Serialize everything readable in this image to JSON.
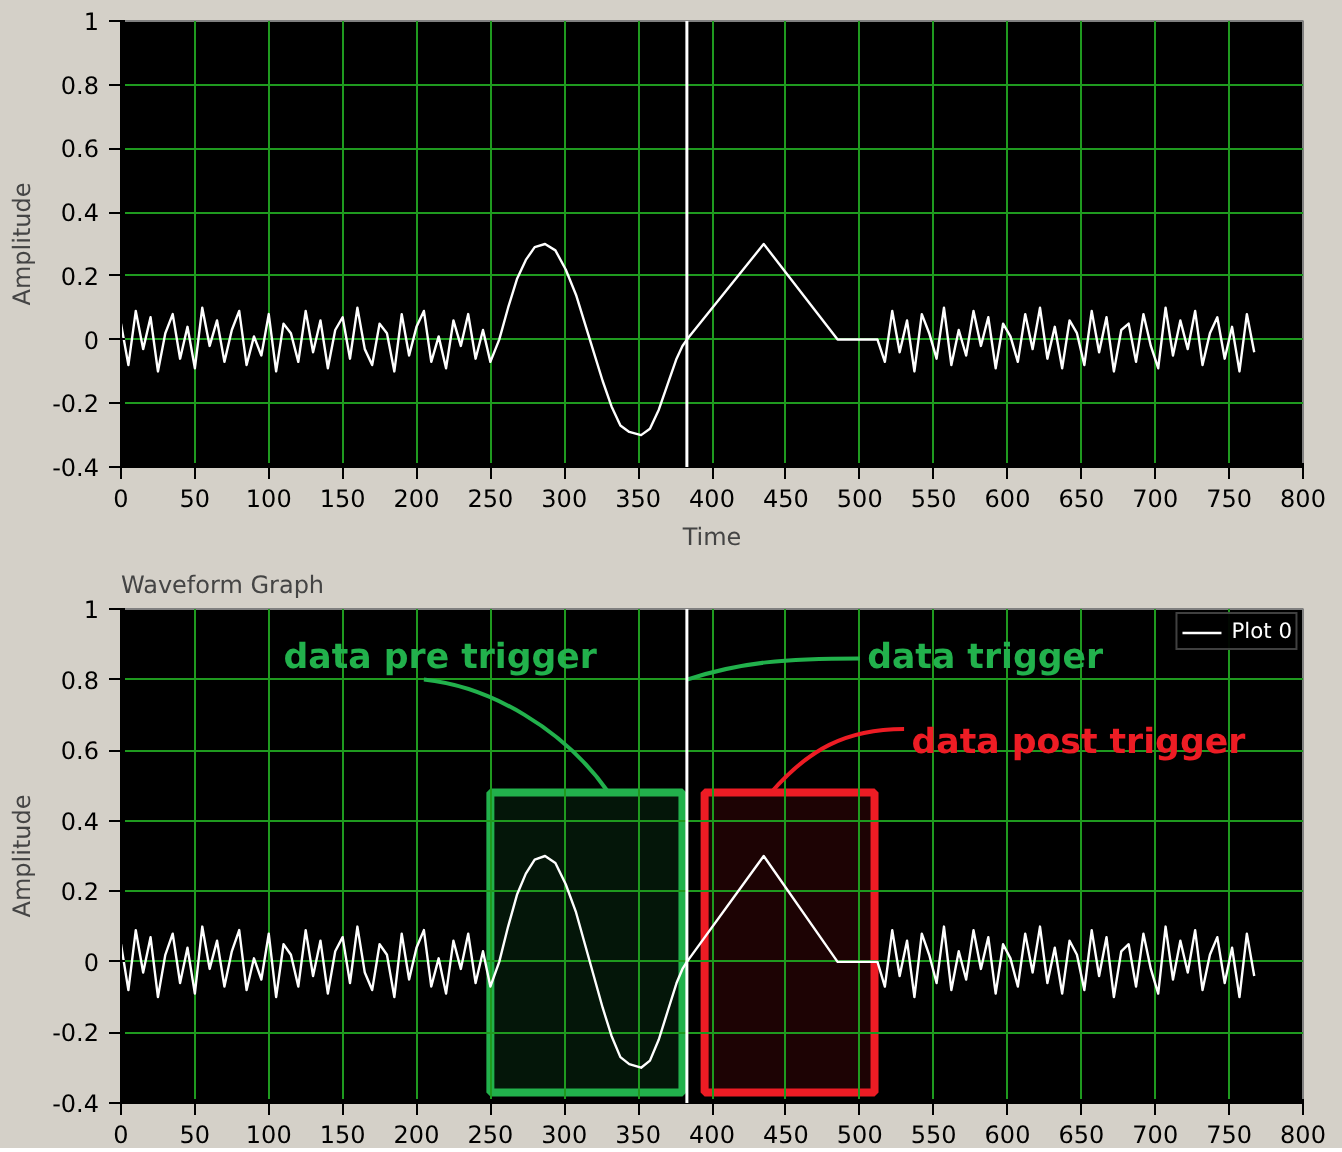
{
  "chart_data": [
    {
      "type": "line",
      "xlabel": "Time",
      "ylabel": "Amplitude",
      "xlim": [
        0,
        800
      ],
      "ylim": [
        -0.4,
        1
      ],
      "xticks": [
        0,
        50,
        100,
        150,
        200,
        250,
        300,
        350,
        400,
        450,
        500,
        550,
        600,
        650,
        700,
        750,
        800
      ],
      "yticks": [
        -0.4,
        -0.2,
        0,
        0.2,
        0.4,
        0.6,
        0.8,
        1
      ],
      "grid": true,
      "legend": false,
      "ref_lines": [
        {
          "axis": "x",
          "value": 383,
          "color": "#ffffff"
        }
      ],
      "series": [
        {
          "color": "#ffffff",
          "x": [
            0,
            5,
            10,
            15,
            20,
            25,
            30,
            35,
            40,
            45,
            50,
            55,
            60,
            65,
            70,
            75,
            80,
            85,
            90,
            95,
            100,
            105,
            110,
            115,
            120,
            125,
            130,
            135,
            140,
            145,
            150,
            155,
            160,
            165,
            170,
            175,
            180,
            185,
            190,
            195,
            200,
            205,
            210,
            215,
            220,
            225,
            230,
            235,
            240,
            245,
            250,
            256,
            262,
            268,
            274,
            280,
            287,
            294,
            301,
            308,
            314,
            320,
            326,
            332,
            338,
            344,
            352,
            358,
            364,
            370,
            376,
            380,
            383,
            435,
            485,
            512,
            517,
            522,
            527,
            532,
            537,
            542,
            547,
            552,
            557,
            562,
            567,
            572,
            577,
            582,
            587,
            592,
            597,
            602,
            607,
            612,
            617,
            622,
            627,
            632,
            637,
            642,
            647,
            652,
            657,
            662,
            667,
            672,
            677,
            682,
            687,
            692,
            697,
            702,
            707,
            712,
            717,
            722,
            727,
            732,
            737,
            742,
            747,
            752,
            757,
            762,
            767
          ],
          "values": [
            0.05,
            -0.08,
            0.09,
            -0.03,
            0.07,
            -0.1,
            0.02,
            0.08,
            -0.06,
            0.04,
            -0.09,
            0.1,
            -0.02,
            0.06,
            -0.07,
            0.03,
            0.09,
            -0.08,
            0.01,
            -0.05,
            0.08,
            -0.1,
            0.05,
            0.02,
            -0.07,
            0.09,
            -0.04,
            0.06,
            -0.09,
            0.03,
            0.07,
            -0.06,
            0.1,
            -0.03,
            -0.08,
            0.05,
            0.02,
            -0.1,
            0.08,
            -0.05,
            0.04,
            0.09,
            -0.07,
            0.01,
            -0.09,
            0.06,
            -0.02,
            0.08,
            -0.06,
            0.03,
            -0.07,
            0,
            0.1,
            0.19,
            0.25,
            0.29,
            0.3,
            0.28,
            0.22,
            0.14,
            0.05,
            -0.04,
            -0.13,
            -0.21,
            -0.27,
            -0.29,
            -0.3,
            -0.28,
            -0.22,
            -0.14,
            -0.06,
            -0.02,
            0,
            0.3,
            0,
            0,
            -0.07,
            0.09,
            -0.04,
            0.06,
            -0.1,
            0.08,
            0.02,
            -0.06,
            0.1,
            -0.08,
            0.03,
            -0.05,
            0.09,
            -0.02,
            0.07,
            -0.09,
            0.05,
            0.01,
            -0.07,
            0.08,
            -0.03,
            0.1,
            -0.06,
            0.04,
            -0.09,
            0.06,
            0.02,
            -0.08,
            0.09,
            -0.04,
            0.07,
            -0.1,
            0.03,
            0.05,
            -0.07,
            0.08,
            -0.02,
            -0.09,
            0.1,
            -0.05,
            0.06,
            -0.03,
            0.09,
            -0.08,
            0.02,
            0.07,
            -0.06,
            0.04,
            -0.1,
            0.08,
            -0.04
          ]
        }
      ]
    },
    {
      "type": "line",
      "title": "Waveform Graph",
      "ylabel": "Amplitude",
      "xlim": [
        0,
        800
      ],
      "ylim": [
        -0.4,
        1
      ],
      "xticks": [
        0,
        50,
        100,
        150,
        200,
        250,
        300,
        350,
        400,
        450,
        500,
        550,
        600,
        650,
        700,
        750,
        800
      ],
      "yticks": [
        -0.4,
        -0.2,
        0,
        0.2,
        0.4,
        0.6,
        0.8,
        1
      ],
      "grid": true,
      "legend": "top right",
      "ref_lines": [
        {
          "axis": "x",
          "value": 383,
          "color": "#ffffff"
        }
      ],
      "bands": [
        {
          "axis": "x",
          "from": 250,
          "to": 380,
          "color": "#22b14c"
        },
        {
          "axis": "x",
          "from": 395,
          "to": 510,
          "color": "#ed1c24"
        }
      ],
      "annotations": [
        {
          "text": "data pre trigger",
          "x": 330,
          "y": 0.48
        },
        {
          "text": "data trigger",
          "x": 383,
          "y": 0.8
        },
        {
          "text": "data post trigger",
          "x": 440,
          "y": 0.48
        }
      ],
      "series": [
        {
          "name": "Plot 0",
          "color": "#ffffff",
          "x": [
            0,
            5,
            10,
            15,
            20,
            25,
            30,
            35,
            40,
            45,
            50,
            55,
            60,
            65,
            70,
            75,
            80,
            85,
            90,
            95,
            100,
            105,
            110,
            115,
            120,
            125,
            130,
            135,
            140,
            145,
            150,
            155,
            160,
            165,
            170,
            175,
            180,
            185,
            190,
            195,
            200,
            205,
            210,
            215,
            220,
            225,
            230,
            235,
            240,
            245,
            250,
            256,
            262,
            268,
            274,
            280,
            287,
            294,
            301,
            308,
            314,
            320,
            326,
            332,
            338,
            344,
            352,
            358,
            364,
            370,
            376,
            380,
            383,
            435,
            485,
            512,
            517,
            522,
            527,
            532,
            537,
            542,
            547,
            552,
            557,
            562,
            567,
            572,
            577,
            582,
            587,
            592,
            597,
            602,
            607,
            612,
            617,
            622,
            627,
            632,
            637,
            642,
            647,
            652,
            657,
            662,
            667,
            672,
            677,
            682,
            687,
            692,
            697,
            702,
            707,
            712,
            717,
            722,
            727,
            732,
            737,
            742,
            747,
            752,
            757,
            762,
            767
          ],
          "values": [
            0.05,
            -0.08,
            0.09,
            -0.03,
            0.07,
            -0.1,
            0.02,
            0.08,
            -0.06,
            0.04,
            -0.09,
            0.1,
            -0.02,
            0.06,
            -0.07,
            0.03,
            0.09,
            -0.08,
            0.01,
            -0.05,
            0.08,
            -0.1,
            0.05,
            0.02,
            -0.07,
            0.09,
            -0.04,
            0.06,
            -0.09,
            0.03,
            0.07,
            -0.06,
            0.1,
            -0.03,
            -0.08,
            0.05,
            0.02,
            -0.1,
            0.08,
            -0.05,
            0.04,
            0.09,
            -0.07,
            0.01,
            -0.09,
            0.06,
            -0.02,
            0.08,
            -0.06,
            0.03,
            -0.07,
            0,
            0.1,
            0.19,
            0.25,
            0.29,
            0.3,
            0.28,
            0.22,
            0.14,
            0.05,
            -0.04,
            -0.13,
            -0.21,
            -0.27,
            -0.29,
            -0.3,
            -0.28,
            -0.22,
            -0.14,
            -0.06,
            -0.02,
            0,
            0.3,
            0,
            0,
            -0.07,
            0.09,
            -0.04,
            0.06,
            -0.1,
            0.08,
            0.02,
            -0.06,
            0.1,
            -0.08,
            0.03,
            -0.05,
            0.09,
            -0.02,
            0.07,
            -0.09,
            0.05,
            0.01,
            -0.07,
            0.08,
            -0.03,
            0.1,
            -0.06,
            0.04,
            -0.09,
            0.06,
            0.02,
            -0.08,
            0.09,
            -0.04,
            0.07,
            -0.1,
            0.03,
            0.05,
            -0.07,
            0.08,
            -0.02,
            -0.09,
            0.1,
            -0.05,
            0.06,
            -0.03,
            0.09,
            -0.08,
            0.02,
            0.07,
            -0.06,
            0.04,
            -0.1,
            0.08,
            -0.04
          ]
        }
      ]
    }
  ]
}
